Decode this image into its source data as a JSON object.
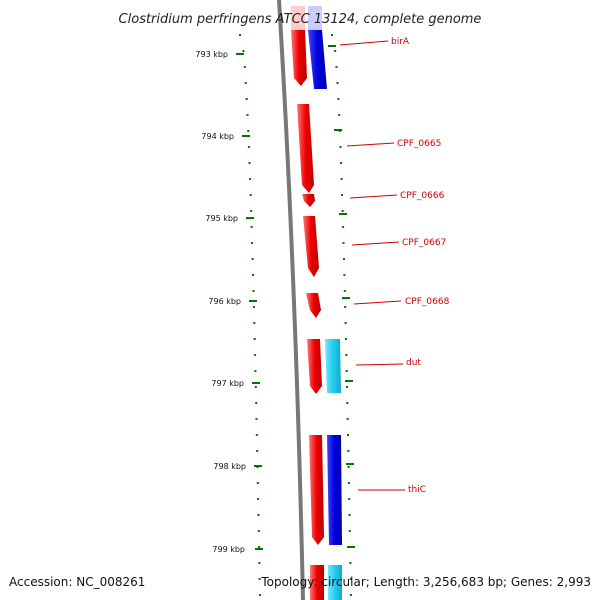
{
  "title": "Clostridium perfringens ATCC 13124, complete genome",
  "ticks": [
    {
      "label": "793 kbp"
    },
    {
      "label": "794 kbp"
    },
    {
      "label": "795 kbp"
    },
    {
      "label": "796 kbp"
    },
    {
      "label": "797 kbp"
    },
    {
      "label": "798 kbp"
    },
    {
      "label": "799 kbp"
    }
  ],
  "genes": [
    {
      "label": "birA"
    },
    {
      "label": "CPF_0665"
    },
    {
      "label": "CPF_0666"
    },
    {
      "label": "CPF_0667"
    },
    {
      "label": "CPF_0668"
    },
    {
      "label": "dut"
    },
    {
      "label": "thiC"
    }
  ],
  "footer": {
    "accession": "Accession: NC_008261",
    "topology": "Topology: circular; Length: 3,256,683 bp; Genes: 2,993"
  },
  "colors": {
    "forward_cds": "#ee0000",
    "reverse_cds_dark": "#0000dd",
    "reverse_cds_light": "#22ccee",
    "backbone": "#777777",
    "tick": "#007700",
    "label": "#cc0000"
  }
}
